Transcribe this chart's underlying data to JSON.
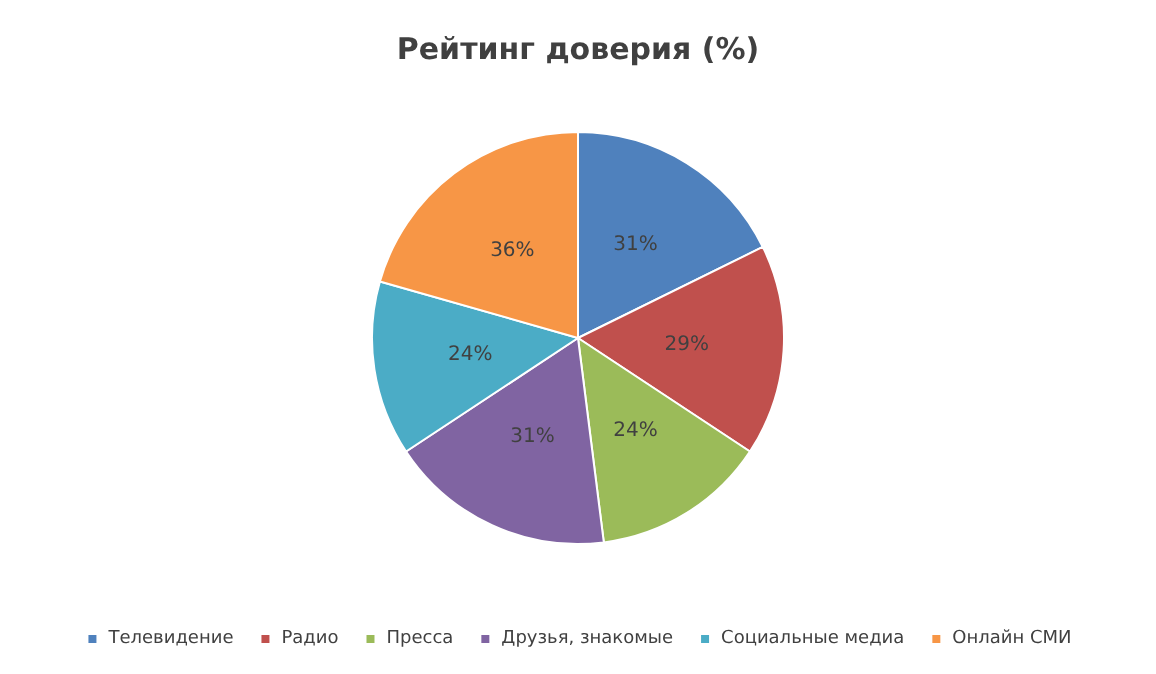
{
  "chart_data": {
    "type": "pie",
    "title": "Рейтинг доверия (%)",
    "categories": [
      "Телевидение",
      "Радио",
      "Пресса",
      "Друзья, знакомые",
      "Социальные медиа",
      "Онлайн СМИ"
    ],
    "values": [
      31,
      29,
      24,
      31,
      24,
      36
    ],
    "colors": [
      "#4f81bd",
      "#c0504d",
      "#9bbb59",
      "#8064a2",
      "#4bacc6",
      "#f79646"
    ],
    "value_labels": [
      "31%",
      "29%",
      "24%",
      "31%",
      "24%",
      "36%"
    ],
    "legend": "bottom"
  }
}
